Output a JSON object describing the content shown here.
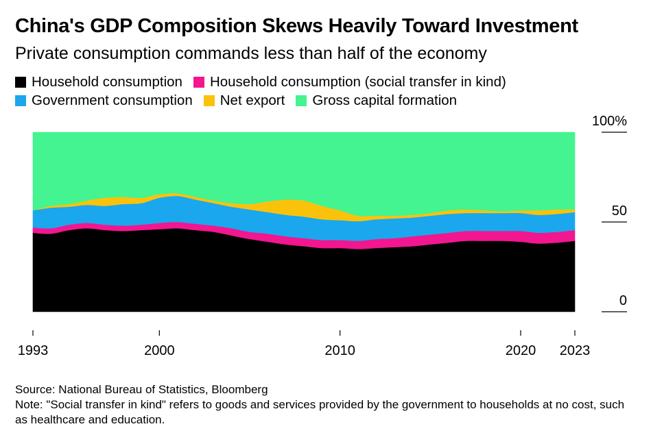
{
  "chart_data": {
    "type": "area",
    "title": "China's GDP Composition Skews Heavily Toward Investment",
    "subtitle": "Private consumption commands less than half of the economy",
    "xlabel": "",
    "ylabel": "",
    "ylim": [
      0,
      100
    ],
    "xlim": [
      1993,
      2023
    ],
    "y_ticks": [
      "0",
      "50",
      "100%"
    ],
    "y_tick_values": [
      0,
      50,
      100
    ],
    "x_ticks": [
      "1993",
      "2000",
      "2010",
      "2020",
      "2023"
    ],
    "x_tick_values": [
      1993,
      2000,
      2010,
      2020,
      2023
    ],
    "legend": "top-left",
    "x": [
      1993,
      1994,
      1995,
      1996,
      1997,
      1998,
      1999,
      2000,
      2001,
      2002,
      2003,
      2004,
      2005,
      2006,
      2007,
      2008,
      2009,
      2010,
      2011,
      2012,
      2013,
      2014,
      2015,
      2016,
      2017,
      2018,
      2019,
      2020,
      2021,
      2022,
      2023
    ],
    "series": [
      {
        "name": "Household consumption",
        "color": "#000000",
        "values": [
          44,
          43.5,
          45.5,
          46.5,
          45.5,
          45,
          45.5,
          46,
          46.5,
          45.5,
          44.5,
          42.5,
          40.5,
          39,
          37.5,
          36.5,
          35.5,
          35.5,
          35,
          35.5,
          36,
          36.5,
          37.5,
          38.5,
          39.5,
          39.5,
          39.5,
          39,
          38,
          38.5,
          39.5
        ]
      },
      {
        "name": "Household consumption (social transfer in kind)",
        "color": "#f2168f",
        "values": [
          3,
          3,
          3,
          3,
          3,
          3,
          3,
          3.5,
          3.5,
          3.5,
          3.5,
          4,
          4,
          4.5,
          4.5,
          4.5,
          4.5,
          4.5,
          4.5,
          5,
          5,
          5.5,
          5.5,
          5.5,
          5.5,
          5.5,
          5.5,
          6,
          6,
          6,
          6
        ]
      },
      {
        "name": "Government consumption",
        "color": "#1aa7ee",
        "values": [
          9.5,
          11.5,
          10,
          10,
          10.5,
          12,
          12,
          14,
          14.5,
          13.5,
          12.5,
          12,
          12.5,
          12,
          12,
          12,
          11.5,
          11,
          11,
          11,
          11,
          10.5,
          10.5,
          10.5,
          10,
          10,
          10,
          10,
          10,
          10,
          10
        ]
      },
      {
        "name": "Net export",
        "color": "#fbc20c",
        "values": [
          0,
          1,
          1.5,
          2.5,
          4.5,
          4,
          3,
          2,
          1.5,
          1.5,
          1.5,
          2,
          3,
          6,
          8.5,
          9,
          7.5,
          5.5,
          3,
          2,
          1.5,
          1.5,
          1.5,
          2,
          2,
          1.5,
          1,
          1.5,
          2.5,
          2.5,
          1.5
        ]
      },
      {
        "name": "Gross capital formation",
        "color": "#43f490",
        "values": [
          43.5,
          41,
          40,
          38,
          36.5,
          36,
          36.5,
          34.5,
          34,
          36,
          38,
          39.5,
          40,
          38.5,
          37.5,
          38,
          41,
          43.5,
          46.5,
          46.5,
          46.5,
          46,
          45,
          43.5,
          43,
          43.5,
          44,
          43.5,
          43.5,
          43,
          43
        ]
      }
    ]
  },
  "footer": {
    "source": "Source: National Bureau of Statistics, Bloomberg",
    "note": "Note: \"Social transfer in kind\" refers to goods and services provided by the government to households at no cost, such as healthcare and education."
  }
}
